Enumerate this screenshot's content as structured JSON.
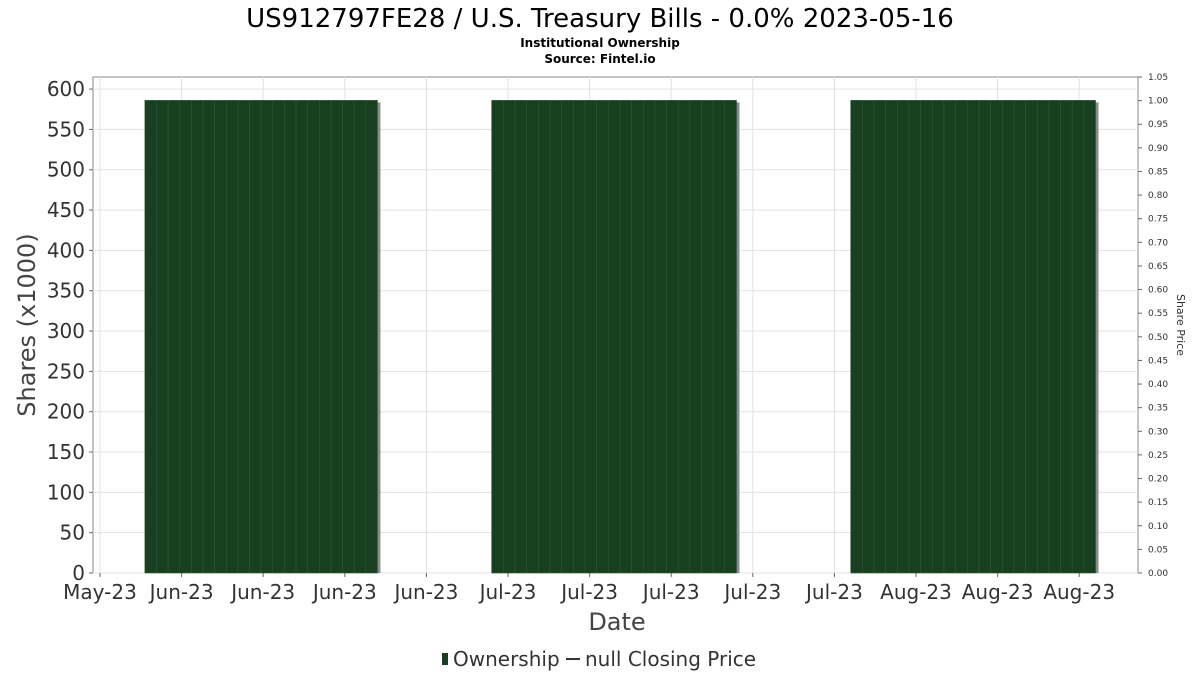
{
  "chart_data": {
    "type": "bar",
    "title": "US912797FE28 / U.S. Treasury Bills - 0.0% 2023-05-16",
    "subtitle_1": "Institutional Ownership",
    "subtitle_2": "Source: Fintel.io",
    "xlabel": "Date",
    "ylabel": "Shares (x1000)",
    "y2label": "Share Price",
    "ylim": [
      0,
      615
    ],
    "y2lim": [
      0,
      1.05
    ],
    "yticks": [
      0,
      50,
      100,
      150,
      200,
      250,
      300,
      350,
      400,
      450,
      500,
      550,
      600
    ],
    "y2ticks": [
      "0.00",
      "0.05",
      "0.10",
      "0.15",
      "0.20",
      "0.25",
      "0.30",
      "0.35",
      "0.40",
      "0.45",
      "0.50",
      "0.55",
      "0.60",
      "0.65",
      "0.70",
      "0.75",
      "0.80",
      "0.85",
      "0.90",
      "0.95",
      "1.00",
      "1.05"
    ],
    "xticks": [
      "May-23",
      "Jun-23",
      "Jun-23",
      "Jun-23",
      "Jun-23",
      "Jul-23",
      "Jul-23",
      "Jul-23",
      "Jul-23",
      "Jul-23",
      "Aug-23",
      "Aug-23",
      "Aug-23"
    ],
    "grid": true,
    "legend_position": "bottom-center",
    "series": [
      {
        "name": "Ownership",
        "kind": "bar",
        "color": "#173f20",
        "periods": [
          {
            "start_tick": 0.55,
            "end_tick": 3.4,
            "value": 586,
            "sub_bars": 20
          },
          {
            "start_tick": 4.8,
            "end_tick": 7.8,
            "value": 586,
            "sub_bars": 21
          },
          {
            "start_tick": 9.2,
            "end_tick": 12.2,
            "value": 586,
            "sub_bars": 21
          }
        ]
      },
      {
        "name": "null Closing Price",
        "kind": "line",
        "color": "#333333",
        "values": []
      }
    ]
  }
}
